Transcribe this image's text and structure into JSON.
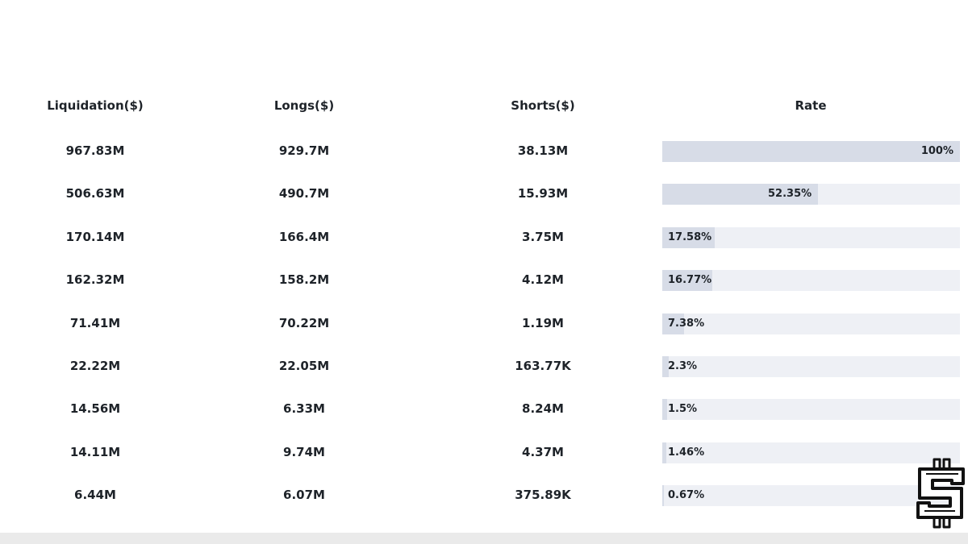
{
  "table": {
    "headers": {
      "liquidation": "Liquidation($)",
      "longs": "Longs($)",
      "shorts": "Shorts($)",
      "rate": "Rate"
    }
  },
  "chart_data": {
    "type": "table",
    "columns": [
      "Liquidation($)",
      "Longs($)",
      "Shorts($)",
      "Rate"
    ],
    "rows": [
      {
        "liquidation": "967.83M",
        "longs": "929.7M",
        "shorts": "38.13M",
        "rate": "100%",
        "rate_value": 100
      },
      {
        "liquidation": "506.63M",
        "longs": "490.7M",
        "shorts": "15.93M",
        "rate": "52.35%",
        "rate_value": 52.35
      },
      {
        "liquidation": "170.14M",
        "longs": "166.4M",
        "shorts": "3.75M",
        "rate": "17.58%",
        "rate_value": 17.58
      },
      {
        "liquidation": "162.32M",
        "longs": "158.2M",
        "shorts": "4.12M",
        "rate": "16.77%",
        "rate_value": 16.77
      },
      {
        "liquidation": "71.41M",
        "longs": "70.22M",
        "shorts": "1.19M",
        "rate": "7.38%",
        "rate_value": 7.38
      },
      {
        "liquidation": "22.22M",
        "longs": "22.05M",
        "shorts": "163.77K",
        "rate": "2.3%",
        "rate_value": 2.3
      },
      {
        "liquidation": "14.56M",
        "longs": "6.33M",
        "shorts": "8.24M",
        "rate": "1.5%",
        "rate_value": 1.5
      },
      {
        "liquidation": "14.11M",
        "longs": "9.74M",
        "shorts": "4.37M",
        "rate": "1.46%",
        "rate_value": 1.46
      },
      {
        "liquidation": "6.44M",
        "longs": "6.07M",
        "shorts": "375.89K",
        "rate": "0.67%",
        "rate_value": 0.67
      }
    ],
    "rate_range": [
      0,
      100
    ]
  },
  "colors": {
    "rate_track": "#eef0f5",
    "rate_fill": "#d7dce7",
    "text": "#1e2329"
  },
  "logo": {
    "icon": "crypto-dollar-logo-icon"
  }
}
